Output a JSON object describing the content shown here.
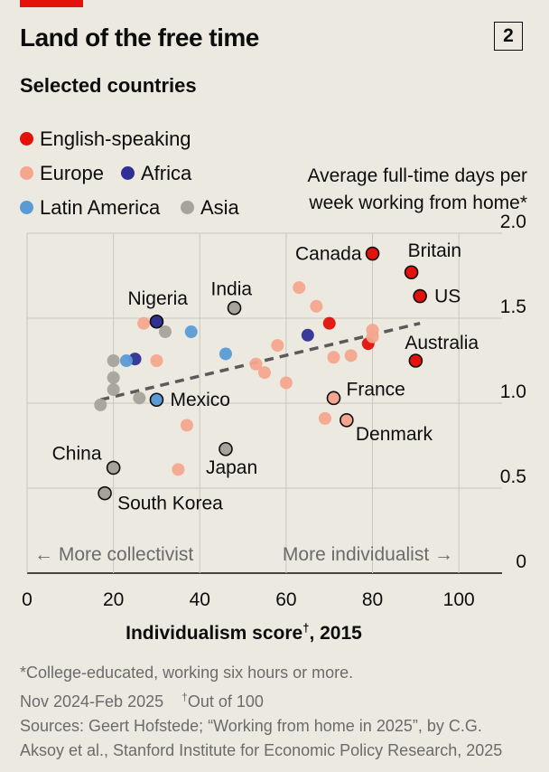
{
  "header": {
    "title": "Land of the free time",
    "chart_number": "2",
    "subtitle": "Selected countries"
  },
  "legend": [
    {
      "label": "English-speaking",
      "color": "#e3120b"
    },
    {
      "label": "Europe",
      "color": "#f6a68e"
    },
    {
      "label": "Africa",
      "color": "#2e3192"
    },
    {
      "label": "Latin America",
      "color": "#5b9bd5"
    },
    {
      "label": "Asia",
      "color": "#a5a39a"
    }
  ],
  "annotations": {
    "left": "← More collectivist",
    "right": "More individualist →"
  },
  "notes": {
    "line1": "*College-educated, working six hours or more.",
    "line2a": "Nov 2024-Feb 2025",
    "line2b_marker": "†",
    "line2b": "Out of 100",
    "line3": "Sources: Geert Hofstede; “Working from home in 2025”, by C.G.",
    "line4": "Aksoy et al., Stanford Institute for Economic Policy Research, 2025"
  },
  "chart_data": {
    "type": "scatter",
    "title": "Land of the free time",
    "subtitle": "Selected countries",
    "xlabel": "Individualism score",
    "xlabel_marker": "†",
    "xlabel_suffix": ", 2015",
    "ylabel_line1": "Average full-time days per",
    "ylabel_line2": "week working from home*",
    "xlim": [
      0,
      110
    ],
    "ylim": [
      0,
      2.0
    ],
    "xticks": [
      0,
      20,
      40,
      60,
      80,
      100
    ],
    "xtick_labels": [
      "0",
      "20",
      "40",
      "60",
      "80",
      "100"
    ],
    "yticks": [
      0,
      0.5,
      1.0,
      1.5,
      2.0
    ],
    "ytick_labels": [
      "0",
      "0.5",
      "1.0",
      "1.5",
      "2.0"
    ],
    "grid": "horizontal and vertical",
    "legend_position": "top-left",
    "trendline": {
      "x": [
        17,
        91
      ],
      "y": [
        1.02,
        1.47
      ],
      "style": "dashed",
      "color": "#5a5a5a"
    },
    "points": [
      {
        "label": "Canada",
        "x": 80,
        "y": 1.88,
        "group": "English-speaking"
      },
      {
        "label": "Britain",
        "x": 89,
        "y": 1.77,
        "group": "English-speaking"
      },
      {
        "label": "US",
        "x": 91,
        "y": 1.63,
        "group": "English-speaking"
      },
      {
        "label": "Australia",
        "x": 90,
        "y": 1.25,
        "group": "English-speaking"
      },
      {
        "label": "",
        "x": 70,
        "y": 1.47,
        "group": "English-speaking"
      },
      {
        "label": "",
        "x": 79,
        "y": 1.35,
        "group": "English-speaking"
      },
      {
        "label": "France",
        "x": 71,
        "y": 1.03,
        "group": "Europe"
      },
      {
        "label": "Denmark",
        "x": 74,
        "y": 0.9,
        "group": "Europe"
      },
      {
        "label": "",
        "x": 63,
        "y": 1.68,
        "group": "Europe"
      },
      {
        "label": "",
        "x": 67,
        "y": 1.57,
        "group": "Europe"
      },
      {
        "label": "",
        "x": 58,
        "y": 1.34,
        "group": "Europe"
      },
      {
        "label": "",
        "x": 53,
        "y": 1.23,
        "group": "Europe"
      },
      {
        "label": "",
        "x": 55,
        "y": 1.18,
        "group": "Europe"
      },
      {
        "label": "",
        "x": 60,
        "y": 1.12,
        "group": "Europe"
      },
      {
        "label": "",
        "x": 71,
        "y": 1.27,
        "group": "Europe"
      },
      {
        "label": "",
        "x": 75,
        "y": 1.28,
        "group": "Europe"
      },
      {
        "label": "",
        "x": 80,
        "y": 1.43,
        "group": "Europe"
      },
      {
        "label": "",
        "x": 80,
        "y": 1.39,
        "group": "Europe"
      },
      {
        "label": "",
        "x": 69,
        "y": 0.91,
        "group": "Europe"
      },
      {
        "label": "",
        "x": 27,
        "y": 1.47,
        "group": "Europe"
      },
      {
        "label": "",
        "x": 30,
        "y": 1.25,
        "group": "Europe"
      },
      {
        "label": "",
        "x": 37,
        "y": 0.87,
        "group": "Europe"
      },
      {
        "label": "",
        "x": 35,
        "y": 0.61,
        "group": "Europe"
      },
      {
        "label": "Nigeria",
        "x": 30,
        "y": 1.48,
        "group": "Africa"
      },
      {
        "label": "",
        "x": 25,
        "y": 1.26,
        "group": "Africa"
      },
      {
        "label": "",
        "x": 65,
        "y": 1.4,
        "group": "Africa"
      },
      {
        "label": "Mexico",
        "x": 30,
        "y": 1.02,
        "group": "Latin America"
      },
      {
        "label": "",
        "x": 23,
        "y": 1.25,
        "group": "Latin America"
      },
      {
        "label": "",
        "x": 38,
        "y": 1.42,
        "group": "Latin America"
      },
      {
        "label": "",
        "x": 46,
        "y": 1.29,
        "group": "Latin America"
      },
      {
        "label": "India",
        "x": 48,
        "y": 1.56,
        "group": "Asia"
      },
      {
        "label": "Japan",
        "x": 46,
        "y": 0.73,
        "group": "Asia"
      },
      {
        "label": "China",
        "x": 20,
        "y": 0.62,
        "group": "Asia"
      },
      {
        "label": "South Korea",
        "x": 18,
        "y": 0.47,
        "group": "Asia"
      },
      {
        "label": "",
        "x": 17,
        "y": 0.99,
        "group": "Asia"
      },
      {
        "label": "",
        "x": 20,
        "y": 1.08,
        "group": "Asia"
      },
      {
        "label": "",
        "x": 20,
        "y": 1.15,
        "group": "Asia"
      },
      {
        "label": "",
        "x": 20,
        "y": 1.25,
        "group": "Asia"
      },
      {
        "label": "",
        "x": 26,
        "y": 1.03,
        "group": "Asia"
      },
      {
        "label": "",
        "x": 32,
        "y": 1.42,
        "group": "Asia"
      }
    ]
  }
}
